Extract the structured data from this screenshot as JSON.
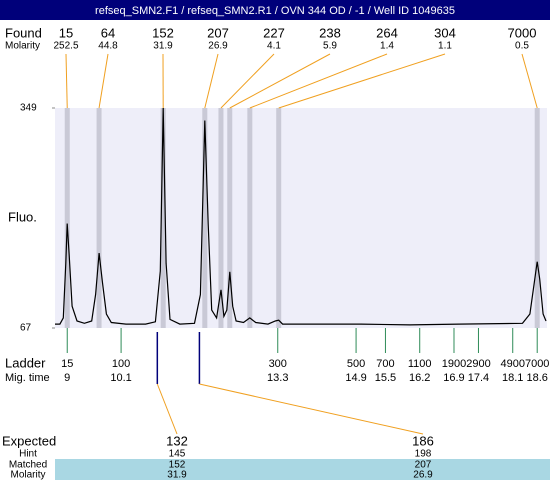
{
  "header": {
    "title": "refseq_SMN2.F1 / refseq_SMN2.R1 / OVN 344 OD / -1 / Well ID 1049635"
  },
  "found": {
    "label": "Found",
    "molarity_label": "Molarity",
    "sizes": [
      15,
      64,
      152,
      207,
      227,
      238,
      264,
      304,
      7000
    ],
    "molarity": [
      252.5,
      44.8,
      31.9,
      26.9,
      4.1,
      5.9,
      1.4,
      1.1,
      0.5
    ]
  },
  "chart_data": {
    "type": "line",
    "y_label": "Fluo.",
    "ylim": [
      67,
      349
    ],
    "yticks": [
      67,
      349
    ],
    "xlim": [
      8.75,
      18.8
    ],
    "peak_times": [
      9.0,
      9.65,
      10.96,
      11.81,
      12.14,
      12.32,
      12.73,
      13.32,
      18.6
    ],
    "expected_times": [
      10.84,
      11.7
    ],
    "x": [
      8.75,
      8.85,
      8.92,
      8.97,
      9.0,
      9.04,
      9.1,
      9.2,
      9.35,
      9.5,
      9.58,
      9.65,
      9.72,
      9.8,
      9.9,
      10.2,
      10.6,
      10.8,
      10.9,
      10.96,
      11.02,
      11.1,
      11.3,
      11.6,
      11.72,
      11.81,
      11.88,
      11.95,
      12.05,
      12.1,
      12.14,
      12.2,
      12.26,
      12.32,
      12.38,
      12.45,
      12.6,
      12.73,
      12.85,
      13.1,
      13.25,
      13.32,
      13.4,
      14,
      15,
      16,
      17,
      18.3,
      18.45,
      18.55,
      18.6,
      18.65,
      18.72,
      18.78
    ],
    "values": [
      72,
      72,
      80,
      150,
      201,
      160,
      95,
      76,
      73,
      76,
      110,
      163,
      125,
      85,
      74,
      72,
      72,
      75,
      140,
      349,
      150,
      78,
      72,
      73,
      110,
      333,
      200,
      90,
      80,
      100,
      116,
      82,
      90,
      139,
      95,
      76,
      74,
      80,
      74,
      72,
      76,
      77,
      72,
      72,
      72,
      71,
      72,
      73,
      85,
      130,
      152,
      130,
      85,
      76
    ]
  },
  "ladder": {
    "label": "Ladder",
    "time_label": "Mig. time",
    "sizes": [
      15,
      100,
      300,
      500,
      700,
      1100,
      1900,
      2900,
      4900,
      7000
    ],
    "times": [
      9,
      10.1,
      13.3,
      14.9,
      15.5,
      16.2,
      16.9,
      17.4,
      18.1,
      18.6
    ]
  },
  "expected": {
    "labels": [
      "Expected",
      "Hint",
      "Matched",
      "Molarity"
    ],
    "columns": [
      [
        132,
        145,
        152,
        31.9
      ],
      [
        186,
        198,
        207,
        26.9
      ]
    ]
  }
}
